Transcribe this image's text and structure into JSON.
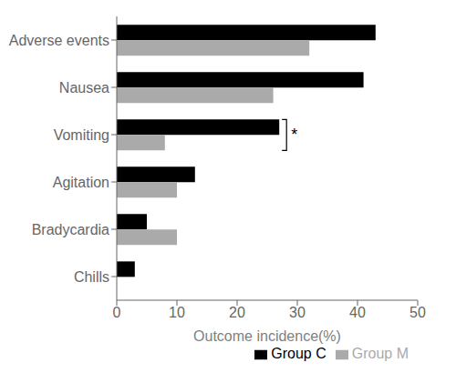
{
  "chart_data": {
    "type": "bar",
    "orientation": "horizontal",
    "categories": [
      "Adverse events",
      "Nausea",
      "Vomiting",
      "Agitation",
      "Bradycardia",
      "Chills"
    ],
    "series": [
      {
        "name": "Group C",
        "color": "#000000",
        "values": [
          43,
          41,
          27,
          13,
          5,
          3
        ]
      },
      {
        "name": "Group M",
        "color": "#aaaaaa",
        "values": [
          32,
          26,
          8,
          10,
          10,
          0
        ]
      }
    ],
    "x_label": "Outcome incidence(%)",
    "xlim": [
      0,
      50
    ],
    "xticks": [
      0,
      10,
      20,
      30,
      40,
      50
    ],
    "legend": "lower right",
    "grid": false,
    "annotations": [
      {
        "category": "Vomiting",
        "text": "*"
      }
    ]
  }
}
